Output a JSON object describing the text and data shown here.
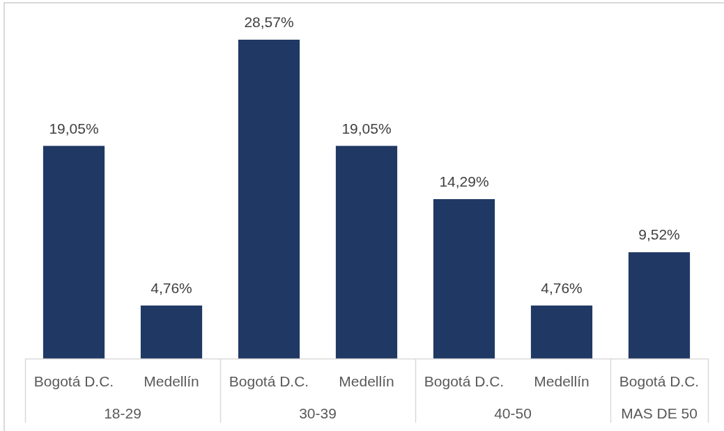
{
  "chart_data": {
    "type": "bar",
    "categories": [
      "18-29",
      "30-39",
      "40-50",
      "MAS DE 50"
    ],
    "series": [
      {
        "name": "Bogotá D.C.",
        "color": "#203864",
        "values": [
          19.05,
          28.57,
          14.29,
          9.52
        ],
        "value_labels": [
          "19,05%",
          "28,57%",
          "14,29%",
          "9,52%"
        ]
      },
      {
        "name": "Medellín",
        "color": "#203864",
        "values": [
          4.76,
          19.05,
          4.76,
          null
        ],
        "value_labels": [
          "4,76%",
          "19,05%",
          "4,76%",
          null
        ]
      }
    ],
    "legend": false,
    "grid": false,
    "tick_labels": "x"
  }
}
